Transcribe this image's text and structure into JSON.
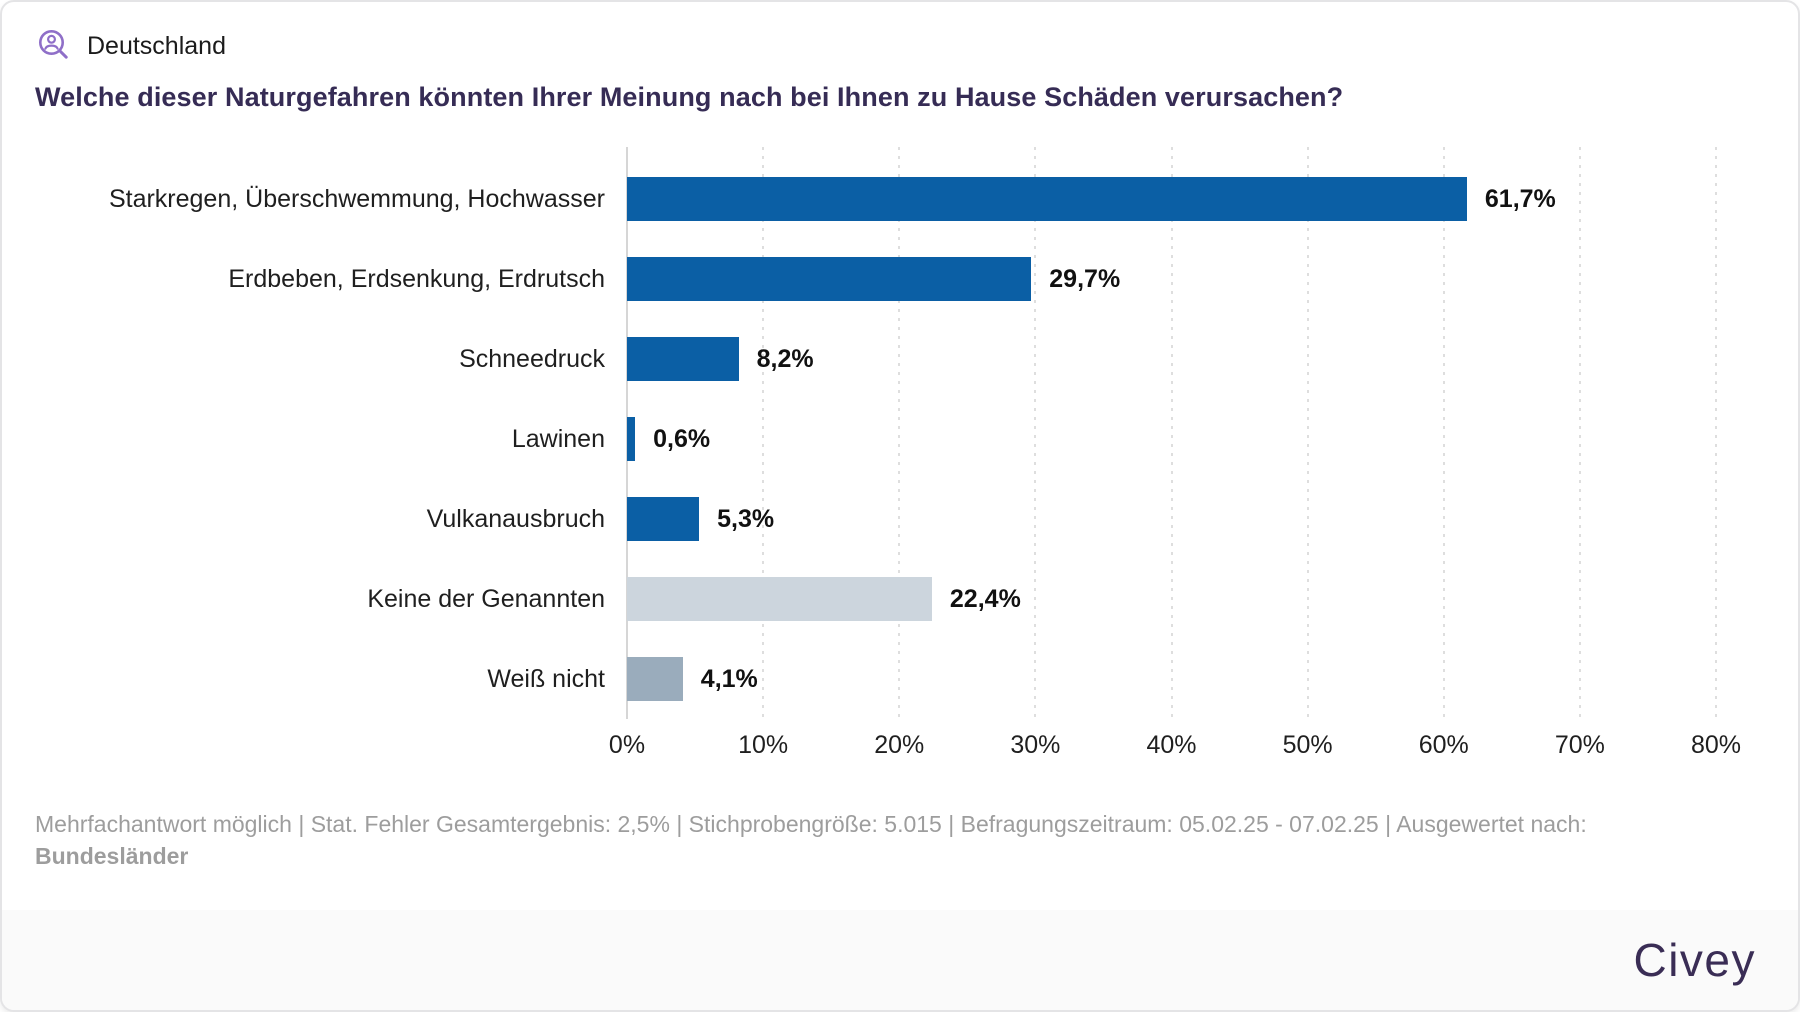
{
  "header": {
    "region_label": "Deutschland",
    "icon": "person-search-icon"
  },
  "title": "Welche dieser Naturgefahren könnten Ihrer Meinung nach bei Ihnen zu Hause Schäden verursachen?",
  "chart_data": {
    "type": "bar",
    "orientation": "horizontal",
    "title": "Welche dieser Naturgefahren könnten Ihrer Meinung nach bei Ihnen zu Hause Schäden verursachen?",
    "categories": [
      "Starkregen, Überschwemmung, Hochwasser",
      "Erdbeben, Erdsenkung, Erdrutsch",
      "Schneedruck",
      "Lawinen",
      "Vulkanausbruch",
      "Keine der Genannten",
      "Weiß nicht"
    ],
    "values": [
      61.7,
      29.7,
      8.2,
      0.6,
      5.3,
      22.4,
      4.1
    ],
    "value_labels": [
      "61,7%",
      "29,7%",
      "8,2%",
      "0,6%",
      "5,3%",
      "22,4%",
      "4,1%"
    ],
    "bar_colors": [
      "#0b5fa5",
      "#0b5fa5",
      "#0b5fa5",
      "#0b5fa5",
      "#0b5fa5",
      "#ccd5dd",
      "#9aacbc"
    ],
    "xlabel": "",
    "ylabel": "",
    "xlim": [
      0,
      80
    ],
    "x_ticks": [
      "0%",
      "10%",
      "20%",
      "30%",
      "40%",
      "50%",
      "60%",
      "70%",
      "80%"
    ],
    "grid": "vertical-dotted",
    "legend": "none"
  },
  "footer": {
    "note_line1": "Mehrfachantwort möglich | Stat. Fehler Gesamtergebnis: 2,5% | Stichprobengröße: 5.015 | Befragungszeitraum: 05.02.25 - 07.02.25 | Ausgewertet nach:",
    "note_line2": "Bundesländer"
  },
  "brand": {
    "logo_text": "Civey"
  },
  "colors": {
    "bar_primary": "#0b5fa5",
    "bar_none_of_these": "#ccd5dd",
    "bar_dont_know": "#9aacbc",
    "title_text": "#362c55",
    "accent_purple": "#8f6fc8",
    "footer_text": "#9d9d9d",
    "logo_text": "#3a2d55",
    "gridline": "#dedede",
    "band_background": "#fafafa"
  }
}
